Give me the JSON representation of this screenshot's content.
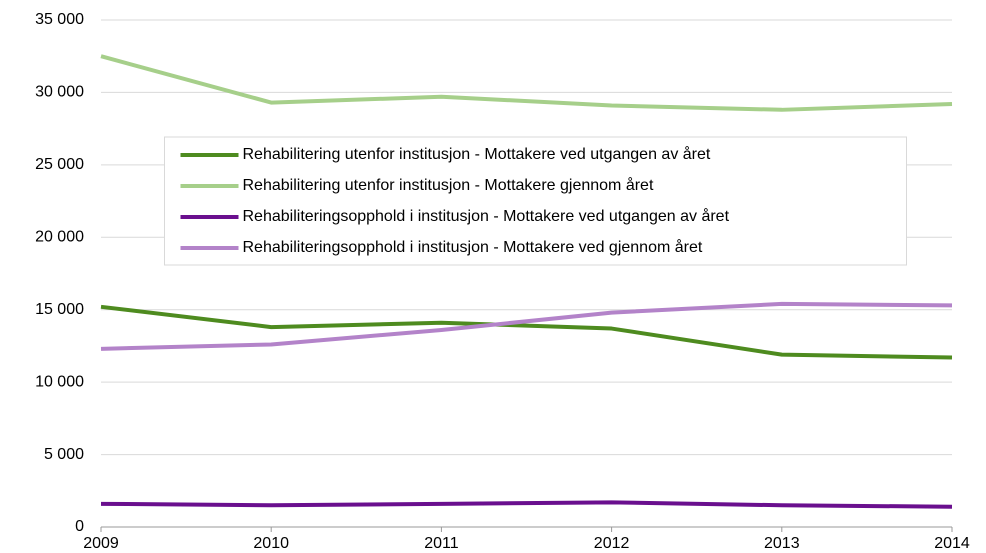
{
  "chart_data": {
    "type": "line",
    "x": [
      2009,
      2010,
      2011,
      2012,
      2013,
      2014
    ],
    "xlim": [
      2009,
      2014
    ],
    "xticks": [
      2009,
      2010,
      2011,
      2012,
      2013,
      2014
    ],
    "ylim": [
      0,
      35000
    ],
    "yticks": [
      0,
      {
        "value": 5000,
        "label": "5 000"
      },
      {
        "value": 10000,
        "label": "10 000"
      },
      {
        "value": 15000,
        "label": "15 000"
      },
      {
        "value": 20000,
        "label": "20 000"
      },
      {
        "value": 25000,
        "label": "25 000"
      },
      {
        "value": 30000,
        "label": "30 000"
      },
      {
        "value": 35000,
        "label": "35 000"
      }
    ],
    "grid": true,
    "legend": "upper center",
    "series": [
      {
        "name": "Rehabilitering utenfor institusjon - Mottakere ved utgangen av året",
        "color": "#4e8b1f",
        "values": [
          15200,
          13800,
          14100,
          13700,
          11900,
          11700
        ]
      },
      {
        "name": "Rehabilitering utenfor institusjon - Mottakere gjennom året",
        "color": "#a6cf8a",
        "values": [
          32500,
          29300,
          29700,
          29100,
          28800,
          29200
        ]
      },
      {
        "name": "Rehabiliteringsopphold i institusjon - Mottakere ved utgangen av året",
        "color": "#6a0f8e",
        "values": [
          1600,
          1500,
          1600,
          1700,
          1500,
          1400
        ]
      },
      {
        "name": "Rehabiliteringsopphold i institusjon - Mottakere ved gjennom året",
        "color": "#b383c9",
        "values": [
          12300,
          12600,
          13600,
          14800,
          15400,
          15300
        ]
      }
    ]
  }
}
